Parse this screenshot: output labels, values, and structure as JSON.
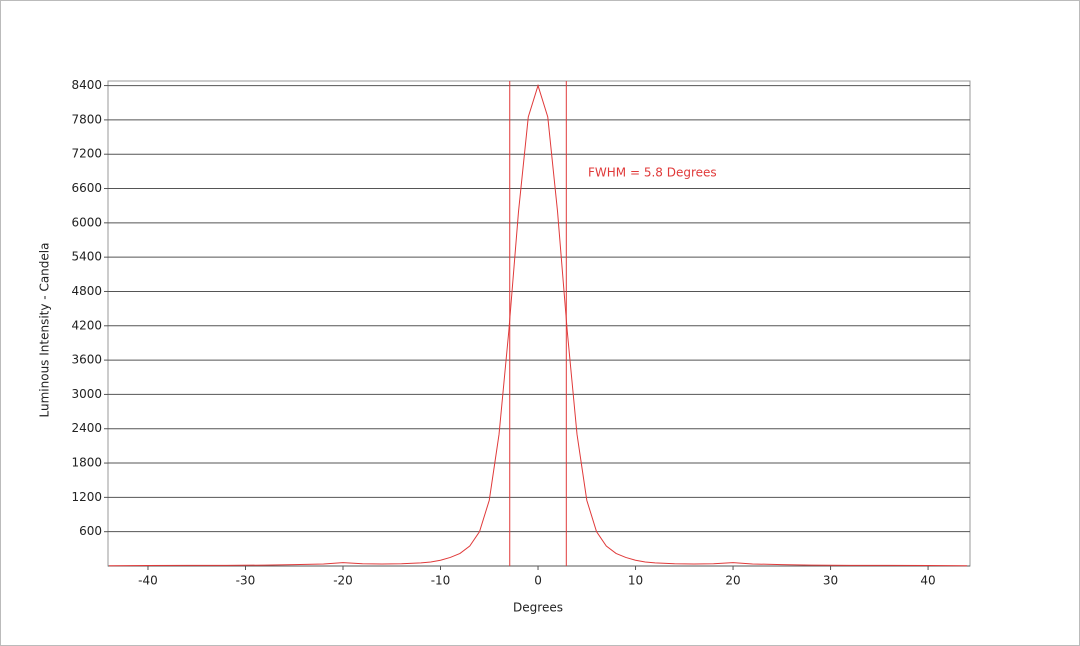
{
  "chart_data": {
    "type": "line",
    "x_label": "Degrees",
    "y_label": "Luminous Intensity - Candela",
    "annotation": "FWHM =  5.8 Degrees",
    "x": [
      -44,
      -40,
      -36,
      -32,
      -28,
      -25,
      -22,
      -20,
      -18,
      -16,
      -14,
      -12,
      -11,
      -10,
      -9,
      -8,
      -7,
      -6,
      -5,
      -4,
      -3,
      -2,
      -1,
      0,
      1,
      2,
      3,
      4,
      5,
      6,
      7,
      8,
      9,
      10,
      11,
      12,
      14,
      16,
      18,
      20,
      22,
      25,
      28,
      32,
      36,
      40,
      44
    ],
    "series": [
      {
        "name": "Luminous Intensity",
        "color": "#e03a3a",
        "values": [
          5,
          8,
          10,
          12,
          15,
          25,
          35,
          60,
          40,
          35,
          40,
          55,
          70,
          100,
          150,
          220,
          350,
          600,
          1150,
          2300,
          4100,
          6200,
          7850,
          8400,
          7850,
          6200,
          4100,
          2300,
          1150,
          600,
          350,
          220,
          150,
          100,
          70,
          55,
          40,
          35,
          40,
          60,
          35,
          25,
          15,
          12,
          10,
          8,
          5
        ]
      }
    ],
    "vlines": [
      -2.9,
      2.9
    ],
    "vline_color": "#e03a3a",
    "xlim": [
      -44.1,
      44.3
    ],
    "ylim": [
      0,
      8480
    ],
    "xticks": [
      -40,
      -30,
      -20,
      -10,
      0,
      10,
      20,
      30,
      40
    ],
    "yticks": [
      600,
      1200,
      1800,
      2400,
      3000,
      3600,
      4200,
      4800,
      5400,
      6000,
      6600,
      7200,
      7800,
      8400
    ],
    "grid": true
  }
}
